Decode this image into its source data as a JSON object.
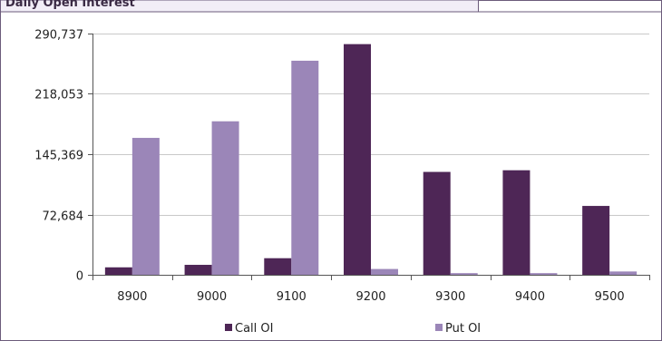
{
  "header": {
    "title": "Daily Open Interest"
  },
  "colors": {
    "call": "#4e2656",
    "put": "#9b86b8",
    "header_bg": "#f2eef7",
    "border": "#6b5b7b"
  },
  "chart_data": {
    "type": "bar",
    "categories": [
      "8900",
      "9000",
      "9100",
      "9200",
      "9300",
      "9400",
      "9500"
    ],
    "series": [
      {
        "name": "Call OI",
        "values": [
          9000,
          12000,
          20000,
          278000,
          124000,
          126000,
          83000
        ]
      },
      {
        "name": "Put OI",
        "values": [
          165000,
          185000,
          258000,
          7000,
          2000,
          2000,
          4000
        ]
      }
    ],
    "ylim": [
      0,
      290737
    ],
    "yticks": [
      "0",
      "72,684",
      "145,369",
      "218,053",
      "290,737"
    ],
    "ytick_values": [
      0,
      72684,
      145369,
      218053,
      290737
    ],
    "grid": true,
    "legend": "bottom"
  }
}
